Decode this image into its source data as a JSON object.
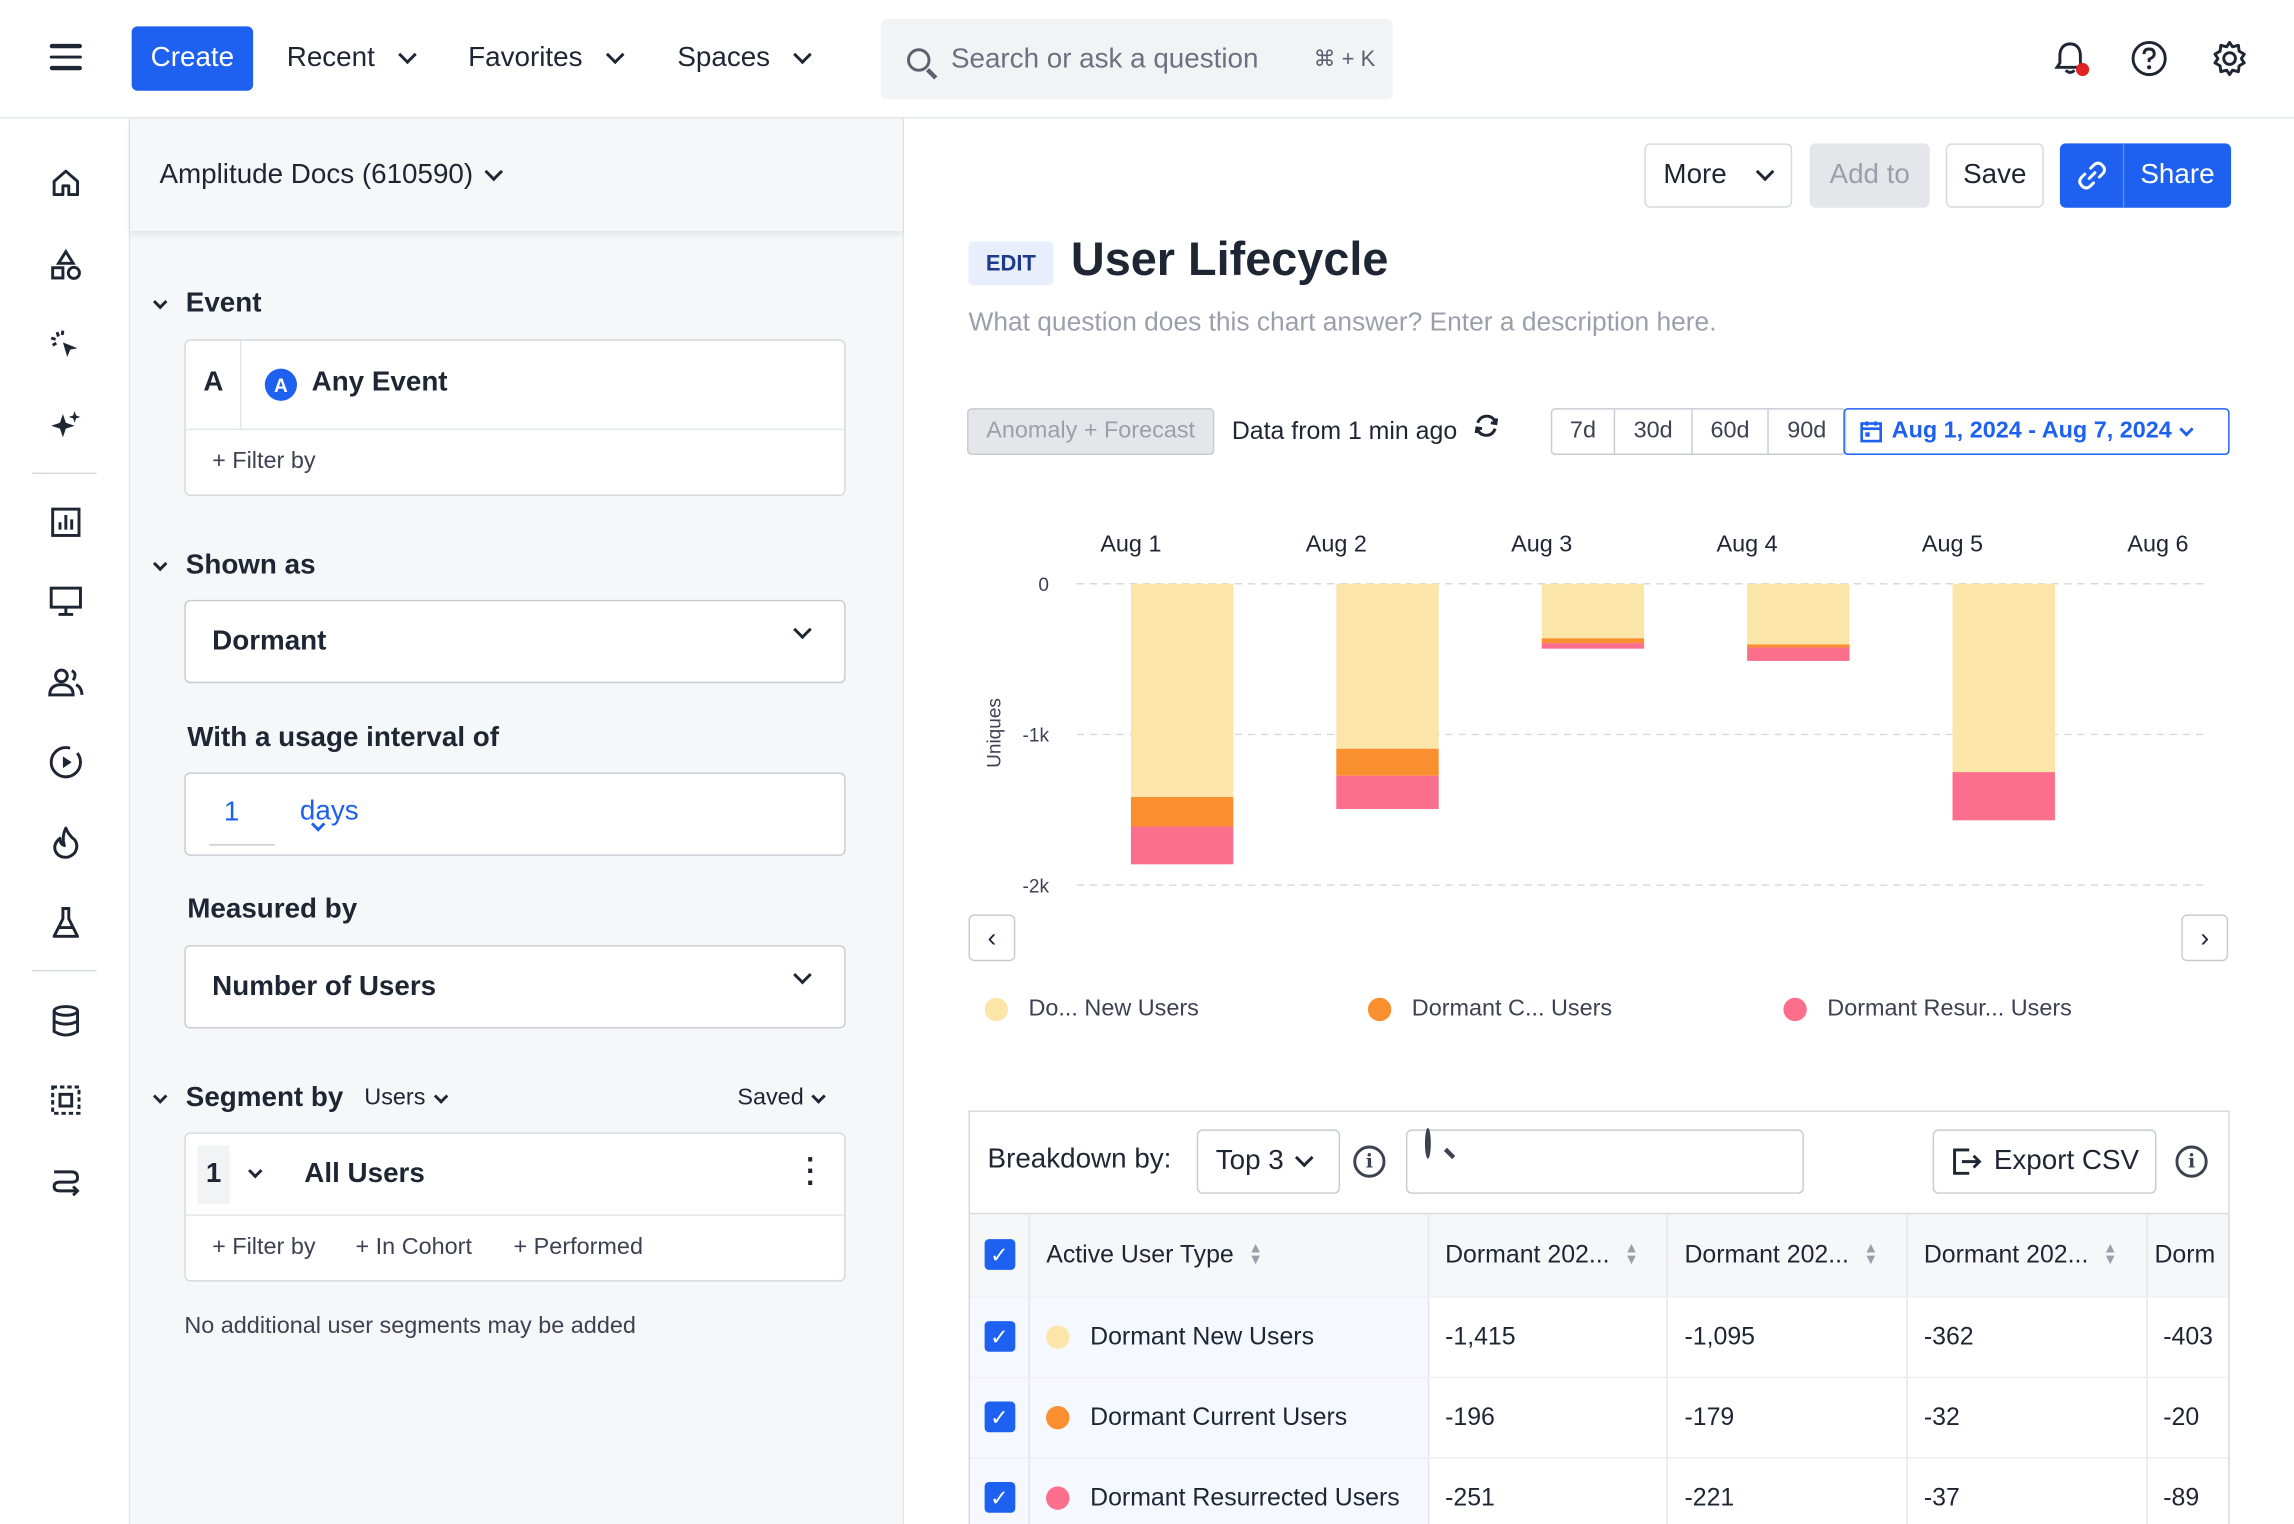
{
  "topbar": {
    "create_label": "Create",
    "nav": [
      "Recent",
      "Favorites",
      "Spaces"
    ],
    "search_placeholder": "Search or ask a question",
    "search_shortcut": "⌘ + K"
  },
  "left_rail": {
    "icons": [
      "home-icon",
      "shapes-icon",
      "pointer-click-icon",
      "sparkles-icon",
      "bar-chart-icon",
      "monitor-icon",
      "users-icon",
      "play-circle-icon",
      "flame-icon",
      "flask-icon",
      "database-icon",
      "selection-icon",
      "workflow-icon"
    ]
  },
  "panel": {
    "project": "Amplitude Docs (610590)",
    "event_section": "Event",
    "event_letter": "A",
    "event_name": "Any Event",
    "event_filter": "+ Filter by",
    "shown_as_section": "Shown as",
    "shown_as_value": "Dormant",
    "usage_label": "With a usage interval of",
    "usage_number": "1",
    "usage_unit": "days",
    "measured_label": "Measured by",
    "measured_value": "Number of Users",
    "segment_section": "Segment by",
    "segment_type": "Users",
    "segment_saved": "Saved",
    "segment_number": "1",
    "segment_name": "All Users",
    "segment_filters": [
      "+ Filter by",
      "+ In Cohort",
      "+ Performed"
    ],
    "segment_note": "No additional user segments may be added"
  },
  "main": {
    "actions": {
      "more": "More",
      "add_to": "Add to",
      "save": "Save",
      "share": "Share"
    },
    "edit_badge": "EDIT",
    "title": "User Lifecycle",
    "description_placeholder": "What question does this chart answer? Enter a description here.",
    "anomaly_label": "Anomaly + Forecast",
    "data_from": "Data from 1 min ago",
    "ranges": [
      "7d",
      "30d",
      "60d",
      "90d"
    ],
    "date_range": "Aug 1, 2024 - Aug 7, 2024"
  },
  "chart_data": {
    "type": "bar",
    "stacked": true,
    "categories": [
      "Aug 1",
      "Aug 2",
      "Aug 3",
      "Aug 4",
      "Aug 5",
      "Aug 6"
    ],
    "ylabel": "Uniques",
    "yticks": [
      "0",
      "-1k",
      "-2k"
    ],
    "ylim": [
      -2000,
      0
    ],
    "grid": true,
    "series": [
      {
        "name": "Do... New Users",
        "color": "#fbe5a8",
        "values": [
          -1415,
          -1095,
          -362,
          -403,
          -1250,
          null
        ]
      },
      {
        "name": "Dormant C... Users",
        "color": "#f98f2e",
        "values": [
          -196,
          -179,
          -32,
          -20,
          0,
          null
        ]
      },
      {
        "name": "Dormant Resur... Users",
        "color": "#fb6f8c",
        "values": [
          -251,
          -221,
          -37,
          -89,
          -320,
          null
        ]
      }
    ]
  },
  "breakdown": {
    "label": "Breakdown by:",
    "top_value": "Top 3",
    "export_label": "Export CSV",
    "columns": [
      "Active User Type",
      "Dormant 202...",
      "Dormant 202...",
      "Dormant 202...",
      "Dorm"
    ],
    "rows": [
      {
        "name": "Dormant New Users",
        "color": "#fbe5a8",
        "values": [
          "-1,415",
          "-1,095",
          "-362",
          "-403"
        ]
      },
      {
        "name": "Dormant Current Users",
        "color": "#f98f2e",
        "values": [
          "-196",
          "-179",
          "-32",
          "-20"
        ]
      },
      {
        "name": "Dormant Resurrected Users",
        "color": "#fb6f8c",
        "values": [
          "-251",
          "-221",
          "-37",
          "-89"
        ]
      }
    ]
  }
}
